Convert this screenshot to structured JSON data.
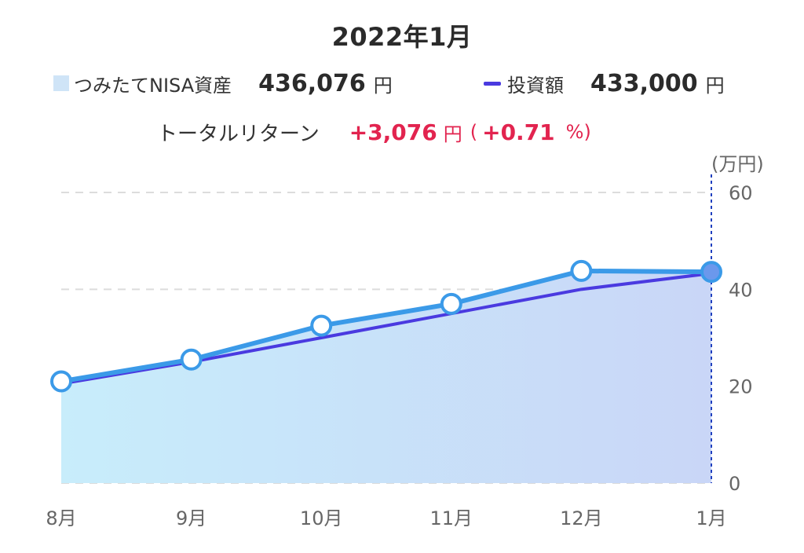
{
  "title": "2022年1月",
  "legend": {
    "asset_label": "つみたてNISA資産",
    "asset_value": "436,076",
    "asset_unit": "円",
    "invest_label": "投資額",
    "invest_value": "433,000",
    "invest_unit": "円"
  },
  "total_return": {
    "label": "トータルリターン",
    "value": "+3,076",
    "unit": "円",
    "paren_open": "(",
    "pct": "+0.71",
    "pct_unit": "%)"
  },
  "colors": {
    "asset_line": "#3b9ae8",
    "asset_fill_start": "#c8edfb",
    "asset_fill_end": "#c9d6f7",
    "invest_line": "#4a3ae0",
    "marker_selected": "#6b98ec",
    "accent_red": "#e2244f",
    "cursor_line": "#1f3fbf"
  },
  "chart_data": {
    "type": "area",
    "y_unit": "(万円)",
    "categories": [
      "8月",
      "9月",
      "10月",
      "11月",
      "12月",
      "1月"
    ],
    "yticks": [
      0,
      20,
      40,
      60
    ],
    "ylim": [
      0,
      60
    ],
    "grid": true,
    "series": [
      {
        "name": "つみたてNISA資産",
        "kind": "area-line",
        "values": [
          21,
          25.5,
          32.5,
          37,
          43.8,
          43.6
        ]
      },
      {
        "name": "投資額",
        "kind": "line",
        "values": [
          20.5,
          25,
          30,
          35,
          40,
          43.3
        ]
      }
    ],
    "selected_index": 5
  }
}
